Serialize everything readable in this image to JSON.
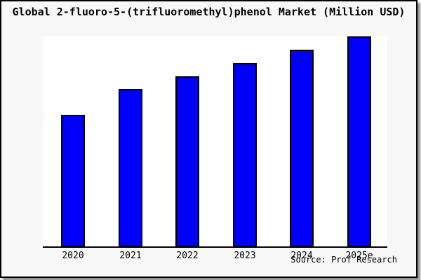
{
  "title": "Global 2-fluoro-5-(trifluoromethyl)phenol Market (Million USD)",
  "source": "Source: Prof Research",
  "colors": {
    "bar_fill": "#0000fa",
    "bar_border": "#000000",
    "frame_background": "#f8f8f8",
    "plot_background": "#ffffff",
    "axis": "#000000",
    "text": "#000000"
  },
  "chart_data": {
    "type": "bar",
    "title": "Global 2-fluoro-5-(trifluoromethyl)phenol Market (Million USD)",
    "categories": [
      "2020",
      "2021",
      "2022",
      "2023",
      "2024",
      "2025e"
    ],
    "values": [
      62.8,
      75.1,
      81.1,
      87.4,
      93.7,
      100
    ],
    "values_note": "no numeric axis or data labels shown in chart; values are relative bar heights as % of the tallest (2025e) bar",
    "xlabel": "",
    "ylabel": "",
    "ylim": [
      0,
      100
    ],
    "grid": false,
    "legend": false,
    "y_axis_visible": false,
    "source_caption": "Source: Prof Research"
  }
}
